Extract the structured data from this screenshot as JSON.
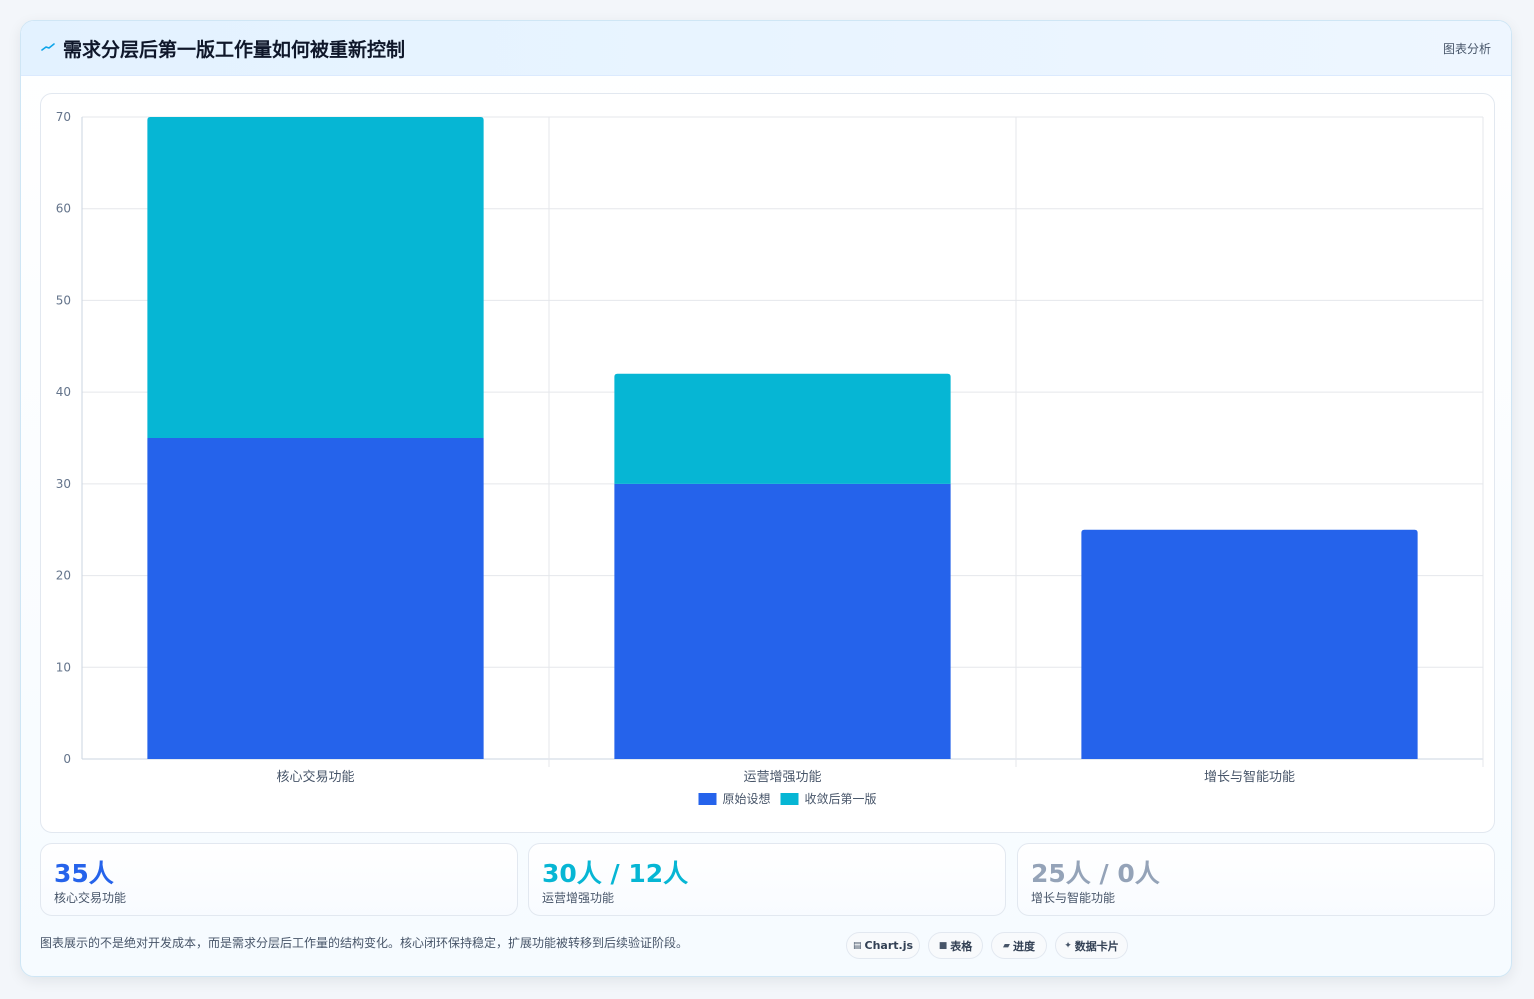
{
  "header": {
    "title": "需求分层后第一版工作量如何被重新控制",
    "tag": "图表分析",
    "icon": "chart-line-icon"
  },
  "chart_data": {
    "type": "bar",
    "stacked": true,
    "categories": [
      "核心交易功能",
      "运营增强功能",
      "增长与智能功能"
    ],
    "series": [
      {
        "name": "原始设想",
        "values": [
          35,
          30,
          25
        ],
        "color": "#2563eb"
      },
      {
        "name": "收敛后第一版",
        "values": [
          35,
          12,
          0
        ],
        "color": "#06b6d4"
      }
    ],
    "ylim": [
      0,
      70
    ],
    "yticks": [
      0,
      10,
      20,
      30,
      40,
      50,
      60,
      70
    ],
    "grid": true,
    "legend": "bottom"
  },
  "stats": [
    {
      "value": "35人",
      "label": "核心交易功能",
      "color": "#2563eb"
    },
    {
      "value": "30人 / 12人",
      "label": "运营增强功能",
      "color": "#06b6d4"
    },
    {
      "value": "25人 / 0人",
      "label": "增长与智能功能",
      "color": "#94a3b8"
    }
  ],
  "footer": {
    "note": "图表展示的不是绝对开发成本，而是需求分层后工作量的结构变化。核心闭环保持稳定，扩展功能被转移到后续验证阶段。",
    "chips": [
      {
        "icon": "▤",
        "icon_name": "chart-icon",
        "label": "Chart.js"
      },
      {
        "icon": "■",
        "icon_name": "table-icon",
        "label": "表格"
      },
      {
        "icon": "▰",
        "icon_name": "progress-icon",
        "label": "进度"
      },
      {
        "icon": "✦",
        "icon_name": "sparkle-icon",
        "label": "数据卡片"
      }
    ]
  }
}
